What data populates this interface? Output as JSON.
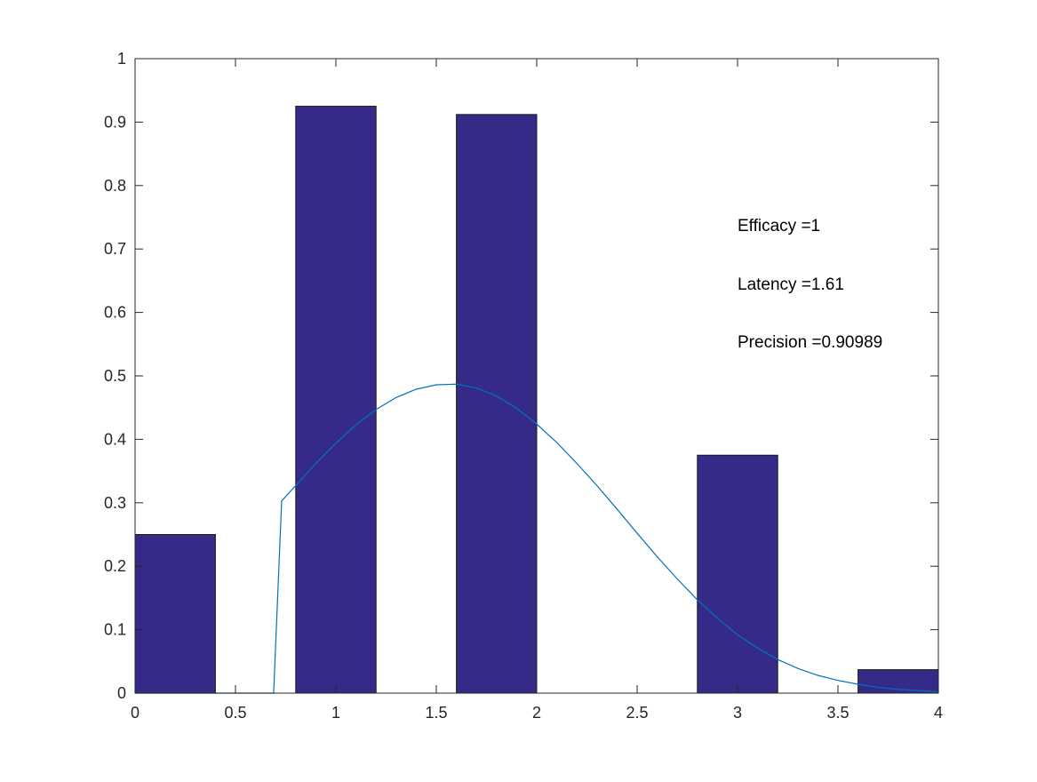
{
  "chart_data": {
    "type": "bar",
    "title": "",
    "xlabel": "",
    "ylabel": "",
    "xlim": [
      0,
      4
    ],
    "ylim": [
      0,
      1
    ],
    "xticks": [
      "0",
      "0.5",
      "1",
      "1.5",
      "2",
      "2.5",
      "3",
      "3.5",
      "4"
    ],
    "yticks": [
      "0",
      "0.1",
      "0.2",
      "0.3",
      "0.4",
      "0.5",
      "0.6",
      "0.7",
      "0.8",
      "0.9",
      "1"
    ],
    "grid": false,
    "bars": {
      "centers": [
        0.2,
        1.0,
        1.8,
        3.0,
        3.8
      ],
      "width": 0.4,
      "values": [
        0.25,
        0.925,
        0.912,
        0.375,
        0.037
      ],
      "color": "#352a87"
    },
    "curve": {
      "type": "line",
      "color": "#0072bd",
      "x": [
        0,
        0.69,
        0.73,
        0.8,
        0.9,
        1.0,
        1.1,
        1.2,
        1.3,
        1.4,
        1.5,
        1.6,
        1.7,
        1.8,
        1.9,
        2.0,
        2.1,
        2.2,
        2.3,
        2.4,
        2.5,
        2.6,
        2.7,
        2.8,
        2.9,
        3.0,
        3.1,
        3.2,
        3.3,
        3.4,
        3.5,
        3.6,
        3.7,
        3.8,
        3.9,
        4.0
      ],
      "y": [
        0,
        0,
        0.303,
        0.327,
        0.362,
        0.394,
        0.423,
        0.447,
        0.466,
        0.479,
        0.486,
        0.487,
        0.481,
        0.468,
        0.449,
        0.424,
        0.395,
        0.362,
        0.327,
        0.29,
        0.252,
        0.215,
        0.18,
        0.147,
        0.118,
        0.092,
        0.071,
        0.053,
        0.039,
        0.028,
        0.02,
        0.014,
        0.009,
        0.006,
        0.004,
        0.002
      ]
    },
    "annotations": [
      "Efficacy =1",
      "Latency =1.61",
      "Precision =0.90989"
    ]
  }
}
